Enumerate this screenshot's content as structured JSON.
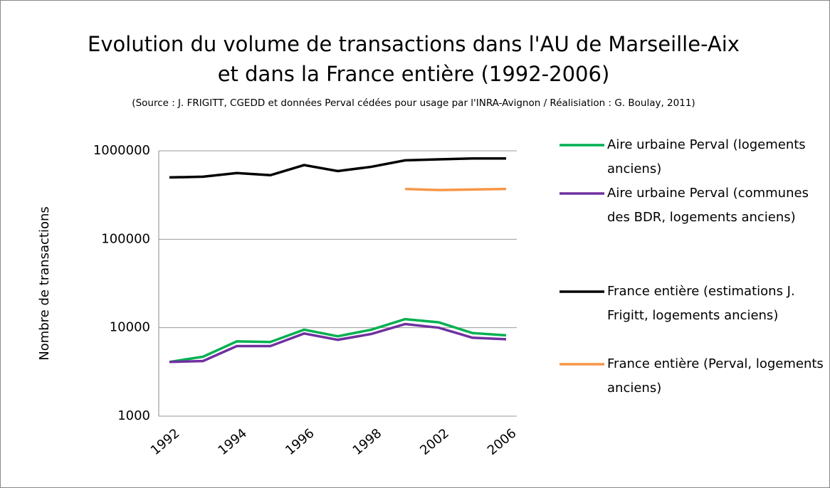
{
  "chart_data": {
    "type": "line",
    "title": "Evolution du volume de transactions  dans  l'AU de Marseille-Aix et dans la France entière (1992-2006)",
    "subtitle": "(Source : J. FRIGITT, CGEDD et données Perval cédées pour usage par l'INRA-Avignon / Réalisiation : G. Boulay, 2011)",
    "y_label": "Nombre de transactions",
    "categories": [
      "1992",
      null,
      "1994",
      null,
      "1996",
      null,
      "1998",
      null,
      "2002",
      null,
      "2006"
    ],
    "series": [
      {
        "name": "Aire urbaine Perval (logements anciens)",
        "color": "#00b050",
        "values": [
          4100,
          4700,
          7000,
          6900,
          9500,
          8000,
          9500,
          12500,
          11500,
          8700,
          8200
        ]
      },
      {
        "name": "Aire urbaine Perval (communes des BDR, logements anciens)",
        "color": "#7030a0",
        "values": [
          4100,
          4200,
          6200,
          6200,
          8600,
          7300,
          8500,
          11000,
          10000,
          7700,
          7400
        ]
      },
      {
        "name": "France entière (estimations J. Frigitt, logements anciens)",
        "color": "#000000",
        "values": [
          500000,
          510000,
          560000,
          530000,
          690000,
          590000,
          660000,
          780000,
          800000,
          820000,
          820000
        ]
      },
      {
        "name": "France entière (Perval, logements anciens)",
        "color": "#f79646",
        "values": [
          null,
          null,
          null,
          null,
          null,
          null,
          null,
          370000,
          360000,
          365000,
          370000
        ]
      }
    ],
    "ylim": [
      1000,
      1000000
    ],
    "yticks": [
      1000,
      10000,
      100000,
      1000000
    ],
    "log_y": true,
    "grid": true,
    "legend": "right"
  }
}
